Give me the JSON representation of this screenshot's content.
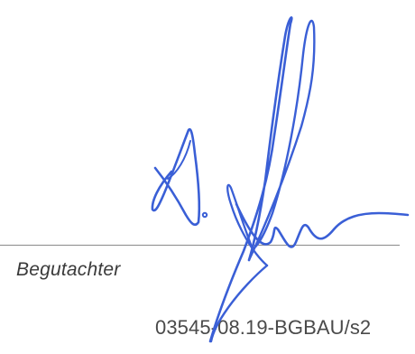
{
  "signature_block": {
    "role_label": "Begutachter",
    "ink_color": "#3a5fd6",
    "line_color": "#8a8a8a"
  },
  "document": {
    "reference": "03545-08.19-BGBAU/s2"
  }
}
